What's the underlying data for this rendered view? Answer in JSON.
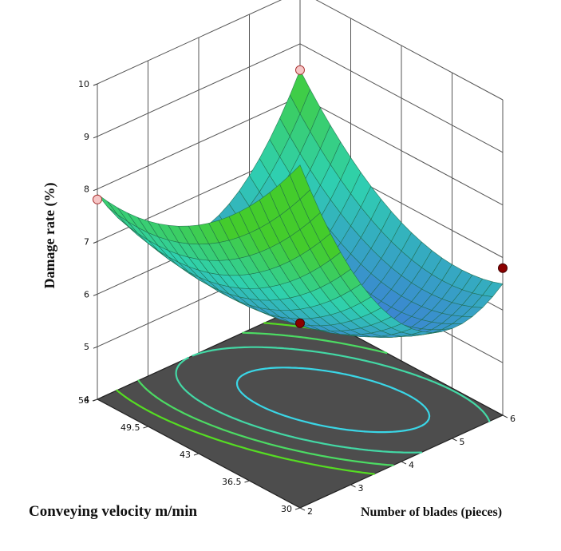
{
  "chart_data": {
    "type": "surface3d",
    "zlabel": "Damage rate (%)",
    "xlabel": "Number of blades (pieces)",
    "ylabel": "Conveying velocity m/min",
    "z_ticks": [
      "4",
      "5",
      "6",
      "7",
      "8",
      "9",
      "10"
    ],
    "x_ticks": [
      "2",
      "3",
      "4",
      "5",
      "6"
    ],
    "y_ticks": [
      "30",
      "36.5",
      "43",
      "49.5",
      "56"
    ],
    "xlim": [
      2,
      6
    ],
    "ylim": [
      30,
      56
    ],
    "zlim": [
      4,
      10
    ],
    "surface_model": {
      "description": "quadratic response surface",
      "corners": [
        {
          "blades": 2,
          "velocity": 56,
          "damage_rate": 7.9
        },
        {
          "blades": 6,
          "velocity": 56,
          "damage_rate": 8.5
        },
        {
          "blades": 6,
          "velocity": 30,
          "damage_rate": 6.5
        },
        {
          "blades": 2,
          "velocity": 30,
          "damage_rate": 6.9
        }
      ],
      "minimum": {
        "blades": 4.5,
        "velocity": 42,
        "damage_rate": 5.5
      }
    },
    "design_points": [
      {
        "blades": 2,
        "velocity": 56,
        "damage_rate": 7.8,
        "marker": "pink"
      },
      {
        "blades": 6,
        "velocity": 56,
        "damage_rate": 8.5,
        "marker": "pink"
      },
      {
        "blades": 6,
        "velocity": 30,
        "damage_rate": 6.8,
        "marker": "darkred"
      },
      {
        "blades": 4,
        "velocity": 43,
        "damage_rate": 5.6,
        "marker": "darkred"
      }
    ],
    "contour_levels": [
      5.8,
      6.3,
      6.8,
      7.3
    ],
    "colors": {
      "floor": "#4d4d4d",
      "grid": "#555555",
      "surface_low": "#3c7fd4",
      "surface_mid": "#2fd0b0",
      "surface_high": "#44cc2c",
      "contour_low": "#3ad6e6",
      "contour_high": "#55dd22",
      "marker_pink": "#f6c6c6",
      "marker_dark": "#8b0000"
    }
  }
}
